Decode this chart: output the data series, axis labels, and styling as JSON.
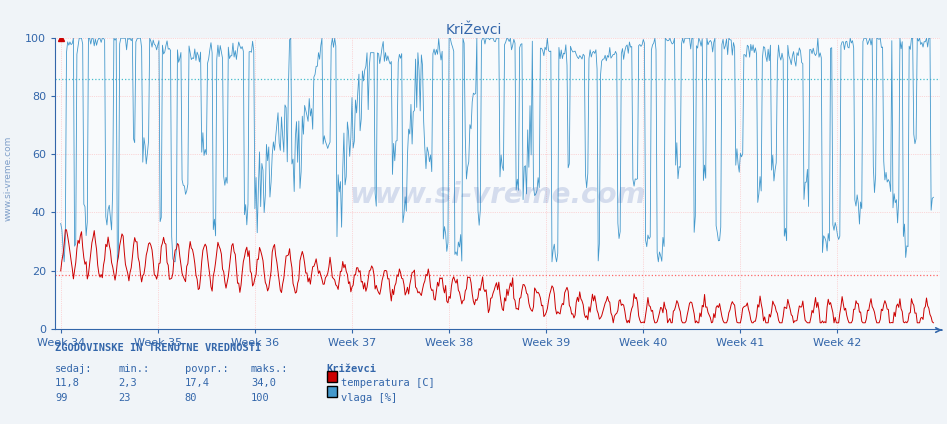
{
  "title": "KriŽevci",
  "bg_color": "#f0f4f8",
  "plot_bg_color": "#f8fafc",
  "grid_color": "#ff8888",
  "temp_color": "#cc0000",
  "hum_color": "#4499cc",
  "avg_temp_color": "#ff6666",
  "avg_hum_color": "#44bbcc",
  "y_min": 0,
  "y_max": 100,
  "yticks": [
    0,
    20,
    40,
    60,
    80,
    100
  ],
  "weeks": [
    "Week 34",
    "Week 35",
    "Week 36",
    "Week 37",
    "Week 38",
    "Week 39",
    "Week 40",
    "Week 41",
    "Week 42"
  ],
  "week_positions": [
    0,
    84,
    168,
    252,
    336,
    420,
    504,
    588,
    672
  ],
  "n_points": 756,
  "temp_sedaj": 11.8,
  "temp_min": 2.3,
  "temp_povpr": 17.4,
  "temp_maks": 34.0,
  "hum_sedaj": 99,
  "hum_min": 23,
  "hum_povpr": 80,
  "hum_maks": 100,
  "avg_temp_val": 18.5,
  "avg_hum_val": 86.0,
  "watermark": "www.si-vreme.com",
  "label_color": "#3366aa",
  "table_header": "ZGODOVINSKE IN TRENUTNE VREDNOSTI",
  "col_labels": [
    "sedaj:",
    "min.:",
    "povpr.:",
    "maks.:",
    "Križevci"
  ],
  "legend_temp": "temperatura [C]",
  "legend_hum": "vlaga [%]"
}
